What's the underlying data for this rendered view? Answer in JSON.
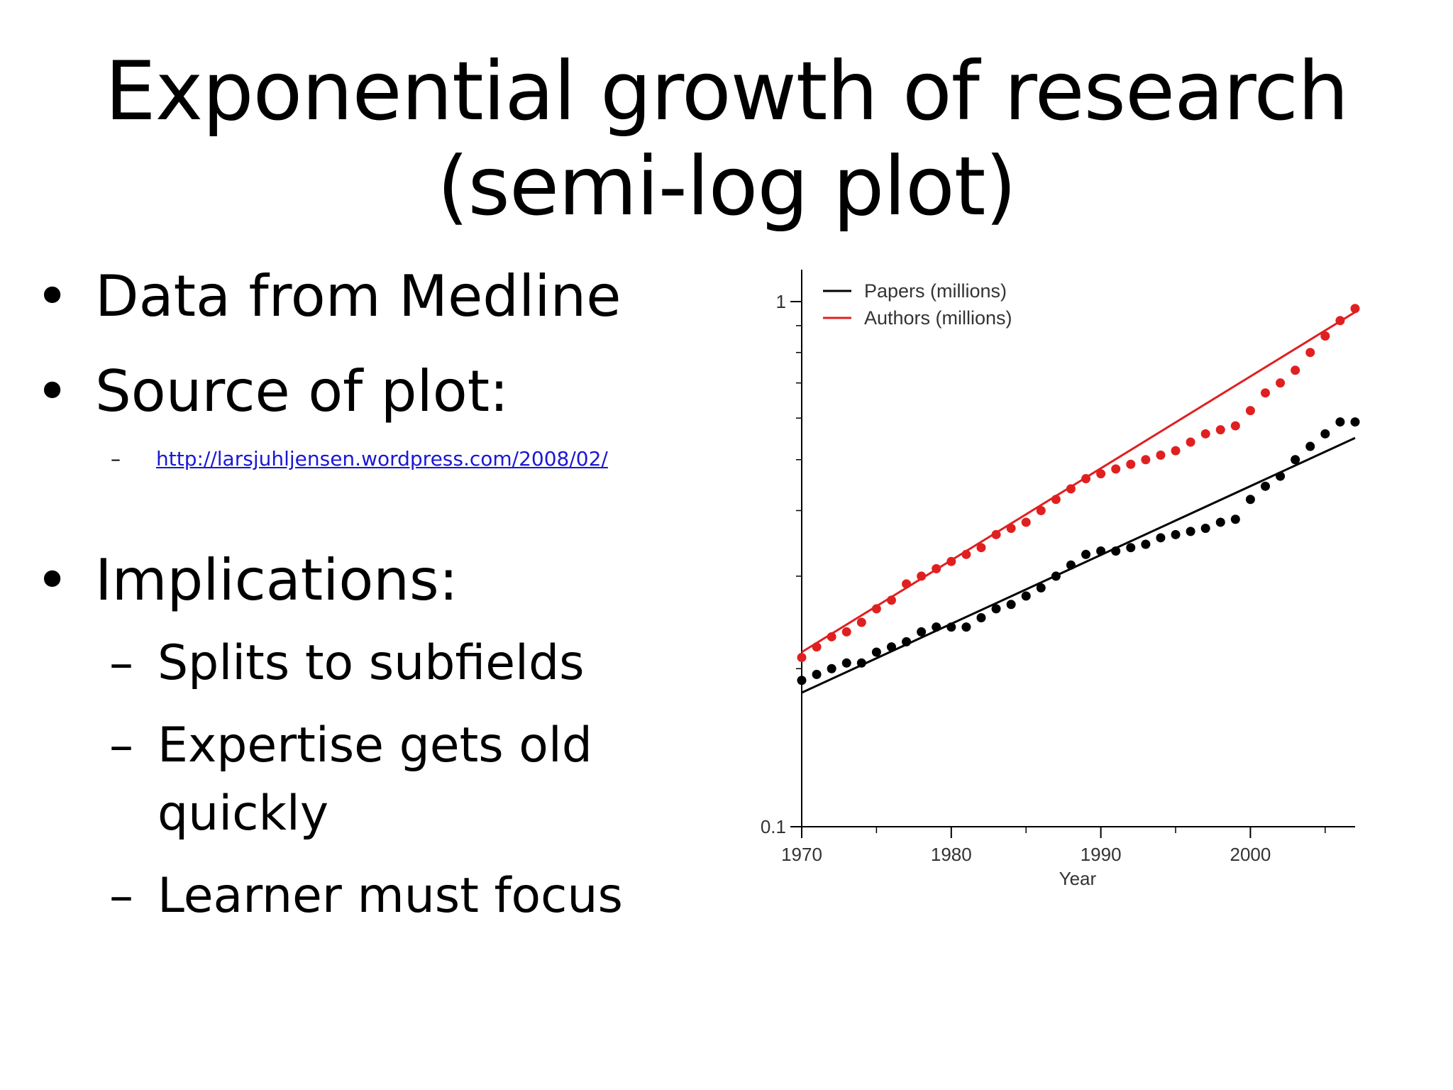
{
  "slide": {
    "title_line1": "Exponential growth of research",
    "title_line2": "(semi-log plot)",
    "bullets": [
      {
        "marker": "•",
        "text": "Data from Medline"
      },
      {
        "marker": "•",
        "text": "Source of plot:"
      },
      {
        "marker": "•",
        "text": "Implications:"
      }
    ],
    "source_link": {
      "marker": "–",
      "text": "http://larsjuhljensen.wordpress.com/2008/02/"
    },
    "sub_bullets": [
      {
        "marker": "–",
        "text": "Splits to subfields"
      },
      {
        "marker": "–",
        "text": "Expertise gets old"
      },
      {
        "marker": "",
        "text": "quickly"
      },
      {
        "marker": "–",
        "text": "Learner must focus"
      }
    ]
  },
  "chart_data": {
    "type": "scatter",
    "xlabel": "Year",
    "ylabel": "",
    "xlim": [
      1970,
      2007
    ],
    "ylim": [
      0.1,
      1
    ],
    "y_scale": "log",
    "x_ticks": [
      1970,
      1980,
      1990,
      2000
    ],
    "y_tick_labels": [
      {
        "value": 1,
        "label": "1"
      },
      {
        "value": 0.1,
        "label": "0.1"
      }
    ],
    "grid": false,
    "legend_position": "top-left",
    "series": [
      {
        "name": "Papers (millions)",
        "color": "#000000",
        "trend": {
          "x": [
            1970,
            2007
          ],
          "y": [
            0.18,
            0.55
          ]
        },
        "x": [
          1970,
          1971,
          1972,
          1973,
          1974,
          1975,
          1976,
          1977,
          1978,
          1979,
          1980,
          1981,
          1982,
          1983,
          1984,
          1985,
          1986,
          1987,
          1988,
          1989,
          1990,
          1991,
          1992,
          1993,
          1994,
          1995,
          1996,
          1997,
          1998,
          1999,
          2000,
          2001,
          2002,
          2003,
          2004,
          2005,
          2006,
          2007
        ],
        "y": [
          0.19,
          0.195,
          0.2,
          0.205,
          0.205,
          0.215,
          0.22,
          0.225,
          0.235,
          0.24,
          0.24,
          0.24,
          0.25,
          0.26,
          0.265,
          0.275,
          0.285,
          0.3,
          0.315,
          0.33,
          0.335,
          0.335,
          0.34,
          0.345,
          0.355,
          0.36,
          0.365,
          0.37,
          0.38,
          0.385,
          0.42,
          0.445,
          0.465,
          0.5,
          0.53,
          0.56,
          0.59,
          0.59
        ]
      },
      {
        "name": "Authors (millions)",
        "color": "#e02020",
        "trend": {
          "x": [
            1970,
            2007
          ],
          "y": [
            0.215,
            0.955
          ]
        },
        "x": [
          1970,
          1971,
          1972,
          1973,
          1974,
          1975,
          1976,
          1977,
          1978,
          1979,
          1980,
          1981,
          1982,
          1983,
          1984,
          1985,
          1986,
          1987,
          1988,
          1989,
          1990,
          1991,
          1992,
          1993,
          1994,
          1995,
          1996,
          1997,
          1998,
          1999,
          2000,
          2001,
          2002,
          2003,
          2004,
          2005,
          2006,
          2007
        ],
        "y": [
          0.21,
          0.22,
          0.23,
          0.235,
          0.245,
          0.26,
          0.27,
          0.29,
          0.3,
          0.31,
          0.32,
          0.33,
          0.34,
          0.36,
          0.37,
          0.38,
          0.4,
          0.42,
          0.44,
          0.46,
          0.47,
          0.48,
          0.49,
          0.5,
          0.51,
          0.52,
          0.54,
          0.56,
          0.57,
          0.58,
          0.62,
          0.67,
          0.7,
          0.74,
          0.8,
          0.86,
          0.92,
          0.97
        ]
      }
    ]
  }
}
